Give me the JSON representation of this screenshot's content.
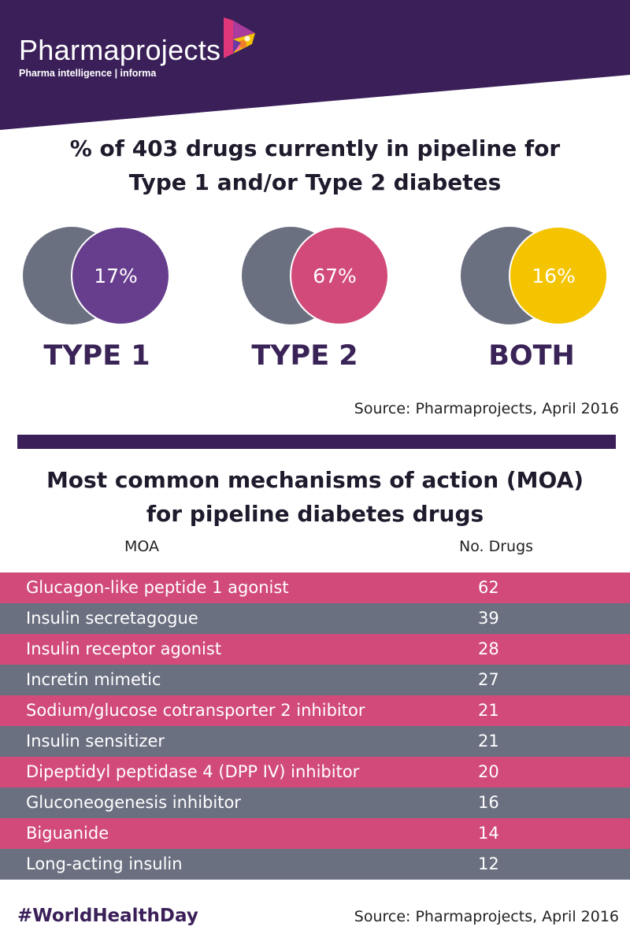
{
  "brand": {
    "name": "Pharmaprojects",
    "tagline": "Pharma intelligence | informa"
  },
  "colors": {
    "header": "#3a1f59",
    "grey": "#6b7081",
    "type1": "#673d8d",
    "type2": "#d14a7a",
    "both": "#f4c400",
    "row_pink": "#d14a7a",
    "row_grey": "#6b7081"
  },
  "chart_data": [
    {
      "type": "pie",
      "title": "% of 403 drugs currently in pipeline for Type 1 and/or Type 2 diabetes",
      "title_lines": [
        "% of 403 drugs currently in pipeline for",
        "Type 1 and/or Type 2 diabetes"
      ],
      "categories": [
        "TYPE 1",
        "TYPE 2",
        "BOTH"
      ],
      "values": [
        17,
        67,
        16
      ],
      "value_labels": [
        "17%",
        "67%",
        "16%"
      ],
      "source": "Source: Pharmaprojects, April 2016"
    },
    {
      "type": "table",
      "title": "Most common mechanisms of action (MOA) for pipeline diabetes drugs",
      "title_lines": [
        "Most common mechanisms of action (MOA)",
        "for pipeline diabetes drugs"
      ],
      "columns": [
        "MOA",
        "No. Drugs"
      ],
      "rows": [
        {
          "moa": "Glucagon-like peptide 1 agonist",
          "count": 62
        },
        {
          "moa": "Insulin secretagogue",
          "count": 39
        },
        {
          "moa": "Insulin receptor agonist",
          "count": 28
        },
        {
          "moa": "Incretin mimetic",
          "count": 27
        },
        {
          "moa": "Sodium/glucose cotransporter 2 inhibitor",
          "count": 21
        },
        {
          "moa": "Insulin sensitizer",
          "count": 21
        },
        {
          "moa": "Dipeptidyl peptidase 4 (DPP IV) inhibitor",
          "count": 20
        },
        {
          "moa": "Gluconeogenesis inhibitor",
          "count": 16
        },
        {
          "moa": "Biguanide",
          "count": 14
        },
        {
          "moa": "Long-acting insulin",
          "count": 12
        }
      ]
    }
  ],
  "footer": {
    "hashtag": "#WorldHealthDay",
    "source": "Source: Pharmaprojects, April 2016"
  }
}
